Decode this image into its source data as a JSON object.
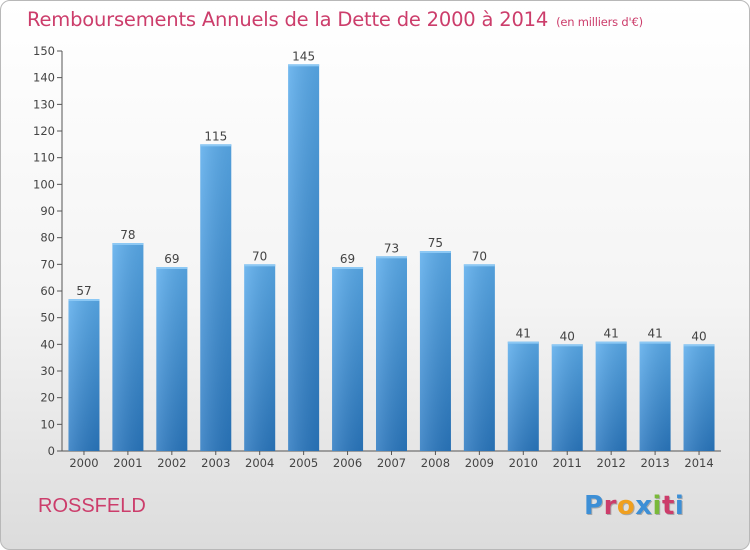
{
  "chart_data": {
    "type": "bar",
    "title": "Remboursements Annuels de la Dette de 2000 à 2014",
    "unit_note": "(en milliers d'€)",
    "categories": [
      "2000",
      "2001",
      "2002",
      "2003",
      "2004",
      "2005",
      "2006",
      "2007",
      "2008",
      "2009",
      "2010",
      "2011",
      "2012",
      "2013",
      "2014"
    ],
    "values": [
      57,
      78,
      69,
      115,
      70,
      145,
      69,
      73,
      75,
      70,
      41,
      40,
      41,
      41,
      40
    ],
    "ylim": [
      0,
      150
    ],
    "yticks": [
      0,
      10,
      20,
      30,
      40,
      50,
      60,
      70,
      80,
      90,
      100,
      110,
      120,
      130,
      140,
      150
    ],
    "grid": false,
    "bar_color": "#3d8fd6",
    "xlabel": "",
    "ylabel": ""
  },
  "footer": {
    "commune": "ROSSFELD",
    "brand": "Proxiti",
    "brand_colors": [
      "#3d8fd6",
      "#cc3d6b",
      "#f0a020",
      "#3d8fd6",
      "#7ab93a",
      "#cc3d6b",
      "#3d8fd6"
    ]
  },
  "colors": {
    "title": "#cc3d6b",
    "axis": "#555555",
    "label": "#444444"
  }
}
